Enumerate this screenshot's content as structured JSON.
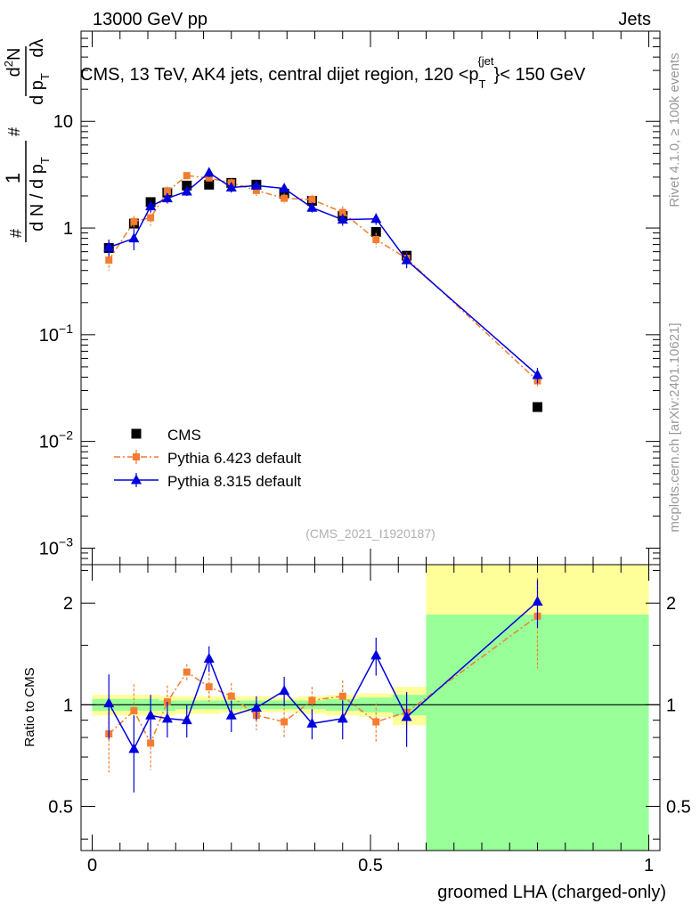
{
  "header": {
    "energy_label": "13000 GeV pp",
    "category_label": "Jets"
  },
  "side_text": {
    "rivet": "Rivet 4.1.0, ≥ 100k events",
    "mcplots": "mcplots.cern.ch [arXiv:2401.10621]"
  },
  "colors": {
    "cms": "#000000",
    "pythia6": "#f47c30",
    "pythia8": "#0000dd",
    "band_yellow": "#ffff99",
    "band_green": "#99ff99"
  },
  "chart_data": [
    {
      "type": "scatter",
      "title": "CMS, 13 TeV, AK4 jets, central dijet region, 120 <p_T^{jet}< 150 GeV",
      "title_parts": {
        "pre": "CMS, 13 TeV, AK4 jets, central dijet region, 120 <p",
        "sub": "T",
        "sup": "{jet",
        "post": "}< 150 GeV"
      },
      "ylabel_parts": [
        "#",
        "1",
        "d N / d p",
        "T",
        "#",
        "d p",
        "T",
        "dλ",
        "d",
        "2",
        "N"
      ],
      "yscale": "log",
      "ylim": [
        0.0007,
        70
      ],
      "xlim": [
        -0.02,
        1.02
      ],
      "yticks": [
        {
          "value": 0.001,
          "base": "10",
          "exp": "−3"
        },
        {
          "value": 0.01,
          "base": "10",
          "exp": "−2"
        },
        {
          "value": 0.1,
          "base": "10",
          "exp": "−1"
        },
        {
          "value": 1,
          "base": "1",
          "exp": ""
        },
        {
          "value": 10,
          "base": "10",
          "exp": ""
        }
      ],
      "watermark": "(CMS_2021_I1920187)",
      "legend_position": "lower-left",
      "series": [
        {
          "name": "CMS",
          "color": "#000000",
          "marker": "square",
          "line": "none",
          "x": [
            0.03,
            0.075,
            0.105,
            0.135,
            0.17,
            0.21,
            0.25,
            0.295,
            0.345,
            0.395,
            0.45,
            0.51,
            0.565,
            0.8
          ],
          "y": [
            0.65,
            1.1,
            1.75,
            2.15,
            2.5,
            2.55,
            2.65,
            2.55,
            2.1,
            1.8,
            1.3,
            0.92,
            0.55,
            0.021
          ],
          "err": [
            0.06,
            0.08,
            0.1,
            0.1,
            0.12,
            0.12,
            0.12,
            0.12,
            0.1,
            0.1,
            0.08,
            0.07,
            0.05,
            0.002
          ]
        },
        {
          "name": "Pythia 6.423 default",
          "color": "#f47c30",
          "marker": "square-small",
          "line": "dashdot",
          "x": [
            0.03,
            0.075,
            0.105,
            0.135,
            0.17,
            0.21,
            0.25,
            0.295,
            0.345,
            0.395,
            0.45,
            0.51,
            0.565,
            0.8
          ],
          "y": [
            0.5,
            1.15,
            1.25,
            2.2,
            3.1,
            2.95,
            2.65,
            2.25,
            1.9,
            1.85,
            1.4,
            0.78,
            0.52,
            0.037
          ],
          "err": [
            0.1,
            0.15,
            0.2,
            0.25,
            0.25,
            0.25,
            0.25,
            0.25,
            0.2,
            0.2,
            0.2,
            0.12,
            0.07,
            0.005
          ]
        },
        {
          "name": "Pythia 8.315 default",
          "color": "#0000dd",
          "marker": "triangle",
          "line": "solid",
          "x": [
            0.03,
            0.075,
            0.105,
            0.135,
            0.17,
            0.21,
            0.25,
            0.295,
            0.345,
            0.395,
            0.45,
            0.51,
            0.565,
            0.8
          ],
          "y": [
            0.66,
            0.8,
            1.6,
            1.9,
            2.2,
            3.3,
            2.4,
            2.5,
            2.35,
            1.55,
            1.2,
            1.22,
            0.5,
            0.042
          ],
          "err": [
            0.12,
            0.18,
            0.2,
            0.2,
            0.2,
            0.3,
            0.25,
            0.2,
            0.25,
            0.15,
            0.15,
            0.15,
            0.08,
            0.007
          ]
        }
      ]
    },
    {
      "type": "scatter",
      "title": "",
      "xlabel": "groomed LHA (charged-only)",
      "ylabel": "Ratio to CMS",
      "yscale": "log",
      "ylim": [
        0.37,
        2.6
      ],
      "xlim": [
        -0.02,
        1.02
      ],
      "xticks": [
        {
          "value": 0,
          "label": "0"
        },
        {
          "value": 0.5,
          "label": "0.5"
        },
        {
          "value": 1,
          "label": "1"
        }
      ],
      "yticks": [
        {
          "value": 0.5,
          "label": "0.5"
        },
        {
          "value": 1,
          "label": "1"
        },
        {
          "value": 2,
          "label": "2"
        }
      ],
      "reference_line": 1,
      "bin_edges": [
        0,
        0.055,
        0.09,
        0.12,
        0.15,
        0.19,
        0.23,
        0.27,
        0.32,
        0.37,
        0.42,
        0.48,
        0.54,
        0.6,
        1.0
      ],
      "band_yellow_lo": [
        0.93,
        0.93,
        0.93,
        0.93,
        0.94,
        0.94,
        0.95,
        0.95,
        0.95,
        0.94,
        0.93,
        0.92,
        0.87,
        0.36
      ],
      "band_yellow_hi": [
        1.07,
        1.07,
        1.07,
        1.06,
        1.06,
        1.06,
        1.06,
        1.06,
        1.05,
        1.06,
        1.07,
        1.08,
        1.13,
        3.0
      ],
      "band_green_lo": [
        0.96,
        0.96,
        0.96,
        0.96,
        0.97,
        0.97,
        0.97,
        0.97,
        0.97,
        0.97,
        0.96,
        0.95,
        0.93,
        0.36
      ],
      "band_green_hi": [
        1.04,
        1.04,
        1.04,
        1.03,
        1.03,
        1.03,
        1.03,
        1.03,
        1.03,
        1.03,
        1.04,
        1.05,
        1.07,
        1.85
      ],
      "series": [
        {
          "name": "Pythia 6.423 default",
          "color": "#f47c30",
          "marker": "square-small",
          "line": "dashdot",
          "x": [
            0.03,
            0.075,
            0.105,
            0.135,
            0.17,
            0.21,
            0.25,
            0.295,
            0.345,
            0.395,
            0.45,
            0.51,
            0.565,
            0.8
          ],
          "y": [
            0.82,
            0.96,
            0.77,
            1.02,
            1.25,
            1.13,
            1.06,
            0.93,
            0.89,
            1.03,
            1.06,
            0.89,
            0.95,
            1.83
          ],
          "err": [
            0.19,
            0.19,
            0.13,
            0.12,
            0.07,
            0.11,
            0.1,
            0.09,
            0.09,
            0.1,
            0.12,
            0.12,
            0.12,
            0.55
          ]
        },
        {
          "name": "Pythia 8.315 default",
          "color": "#0000dd",
          "marker": "triangle",
          "line": "solid",
          "x": [
            0.03,
            0.075,
            0.105,
            0.135,
            0.17,
            0.21,
            0.25,
            0.295,
            0.345,
            0.395,
            0.45,
            0.51,
            0.565,
            0.8
          ],
          "y": [
            1.01,
            0.74,
            0.93,
            0.91,
            0.9,
            1.37,
            0.93,
            0.98,
            1.1,
            0.88,
            0.91,
            1.4,
            0.92,
            2.02
          ],
          "err": [
            0.22,
            0.19,
            0.14,
            0.11,
            0.1,
            0.12,
            0.1,
            0.08,
            0.11,
            0.09,
            0.12,
            0.18,
            0.17,
            0.33
          ]
        }
      ]
    }
  ]
}
